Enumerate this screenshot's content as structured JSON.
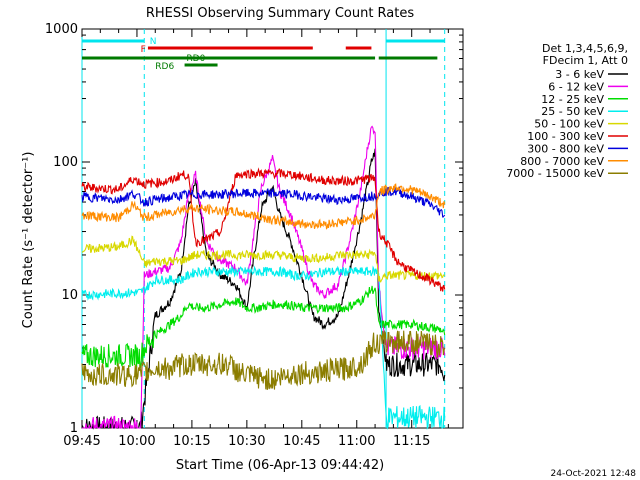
{
  "chart_data": {
    "type": "line",
    "title": "RHESSI Observing Summary Count Rates",
    "xlabel": "Start Time (06-Apr-13 09:44:42)",
    "ylabel": "Count Rate (s⁻¹ detector⁻¹)",
    "yscale": "log",
    "ylim": [
      1,
      1000
    ],
    "xlim_minutes": [
      0,
      104
    ],
    "x_tick_labels": [
      "09:45",
      "10:00",
      "10:15",
      "10:30",
      "10:45",
      "11:00",
      "11:15"
    ],
    "x_tick_minutes": [
      0,
      15,
      30,
      45,
      60,
      75,
      90
    ],
    "y_tick_labels": [
      "1",
      "10",
      "100",
      "1000"
    ],
    "y_tick_values": [
      1,
      10,
      100,
      1000
    ],
    "legend_header": [
      "Det 1,3,4,5,6,9,",
      "FDecim 1, Att 0"
    ],
    "timestamp": "24-Oct-2021 12:48",
    "flag_labels": {
      "night": "N",
      "flare": "F",
      "rd0": "RD0",
      "rd6": "RD6"
    },
    "colors": {
      "night": "#00e5ee",
      "flare": "#e00000",
      "rd": "#007a00"
    },
    "flag_bars": [
      {
        "flag": "night",
        "segments": [
          [
            0,
            17
          ],
          [
            83,
            99
          ]
        ],
        "level": 0
      },
      {
        "flag": "flare",
        "segments": [
          [
            18,
            63
          ],
          [
            72,
            79
          ]
        ],
        "level": 1
      },
      {
        "flag": "rd0",
        "segments": [
          [
            0,
            80
          ],
          [
            81,
            97
          ]
        ],
        "level": 2
      },
      {
        "flag": "rd6",
        "segments": [
          [
            28,
            37
          ]
        ],
        "level": 3
      }
    ],
    "night_edges_minutes": [
      0,
      17,
      83,
      99
    ],
    "series": [
      {
        "name": "3 - 6 keV",
        "color": "#000000",
        "x": [
          0,
          16,
          17,
          20,
          24,
          27,
          29,
          31,
          34,
          38,
          42,
          45,
          47,
          49,
          52,
          54,
          57,
          60,
          63,
          66,
          70,
          73,
          76,
          78,
          79,
          80,
          81,
          83,
          90,
          98,
          99
        ],
        "y": [
          1,
          1,
          1.6,
          7,
          9,
          15,
          45,
          70,
          20,
          14,
          12,
          8,
          20,
          45,
          65,
          40,
          25,
          14,
          7,
          6,
          7,
          15,
          35,
          70,
          100,
          120,
          8,
          3,
          3,
          3,
          2.5
        ]
      },
      {
        "name": "6 - 12 keV",
        "color": "#ee00ee",
        "x": [
          0,
          16,
          17,
          20,
          24,
          27,
          29,
          31,
          34,
          38,
          42,
          45,
          47,
          49,
          52,
          54,
          57,
          60,
          63,
          66,
          70,
          73,
          76,
          78,
          79,
          80,
          81,
          83,
          90,
          98,
          99
        ],
        "y": [
          1,
          1,
          14,
          15,
          16,
          25,
          55,
          80,
          25,
          18,
          16,
          12,
          30,
          65,
          105,
          60,
          40,
          22,
          12,
          10,
          12,
          25,
          60,
          130,
          180,
          175,
          12,
          4,
          4,
          4,
          3.5
        ]
      },
      {
        "name": "12 - 25 keV",
        "color": "#00dd00",
        "x": [
          0,
          16,
          17,
          20,
          24,
          27,
          29,
          31,
          34,
          38,
          42,
          45,
          48,
          52,
          56,
          60,
          64,
          68,
          72,
          76,
          79,
          80,
          81,
          83,
          90,
          98,
          99
        ],
        "y": [
          3.5,
          3.5,
          4,
          5,
          6,
          7,
          8.5,
          8,
          8,
          8.5,
          9,
          8,
          8,
          8.5,
          8.5,
          8,
          8,
          8,
          8,
          9,
          11,
          11,
          6,
          6,
          6,
          5.5,
          5
        ]
      },
      {
        "name": "25 - 50 keV",
        "color": "#00eeee",
        "x": [
          0,
          16,
          17,
          20,
          24,
          27,
          29,
          31,
          34,
          38,
          42,
          46,
          50,
          54,
          58,
          62,
          66,
          70,
          74,
          78,
          80,
          81,
          83,
          88,
          95,
          99
        ],
        "y": [
          10,
          10.5,
          11,
          13,
          13,
          13,
          14,
          15,
          15,
          15,
          15,
          15,
          15,
          15,
          14,
          14,
          15,
          15,
          15,
          15,
          15,
          15,
          1.2,
          1.2,
          1.2,
          1.2
        ]
      },
      {
        "name": "50 - 100 keV",
        "color": "#d8d800",
        "x": [
          0,
          10,
          14,
          17,
          20,
          24,
          27,
          29,
          31,
          34,
          38,
          42,
          46,
          50,
          54,
          58,
          62,
          66,
          70,
          74,
          78,
          80,
          81,
          83,
          88,
          95,
          99
        ],
        "y": [
          22,
          23,
          26,
          17,
          18,
          18,
          18,
          19,
          20,
          20,
          20,
          20,
          20,
          20,
          20,
          19,
          19,
          19,
          20,
          20,
          20,
          21,
          13,
          14,
          14,
          14,
          14
        ]
      },
      {
        "name": "100 - 300 keV",
        "color": "#e00000",
        "x": [
          0,
          10,
          14,
          17,
          20,
          24,
          27,
          29,
          31,
          34,
          38,
          42,
          46,
          50,
          54,
          58,
          62,
          66,
          70,
          74,
          78,
          80,
          81,
          83,
          86,
          90,
          95,
          99
        ],
        "y": [
          65,
          62,
          75,
          68,
          70,
          72,
          80,
          80,
          25,
          26,
          30,
          80,
          82,
          82,
          82,
          80,
          76,
          73,
          72,
          72,
          75,
          75,
          30,
          25,
          18,
          15,
          13,
          11
        ]
      },
      {
        "name": "300 - 800 keV",
        "color": "#0000dd",
        "x": [
          0,
          10,
          14,
          17,
          20,
          24,
          27,
          29,
          31,
          34,
          38,
          42,
          46,
          50,
          54,
          58,
          62,
          66,
          70,
          74,
          78,
          80,
          81,
          83,
          86,
          90,
          95,
          99
        ],
        "y": [
          55,
          52,
          58,
          50,
          52,
          54,
          56,
          57,
          57,
          57,
          57,
          58,
          58,
          58,
          58,
          57,
          55,
          53,
          52,
          53,
          55,
          56,
          58,
          60,
          60,
          55,
          48,
          40
        ]
      },
      {
        "name": "800 - 7000 keV",
        "color": "#ff8c00",
        "x": [
          0,
          10,
          14,
          17,
          20,
          24,
          27,
          29,
          31,
          34,
          38,
          42,
          46,
          50,
          54,
          58,
          62,
          66,
          70,
          74,
          78,
          80,
          81,
          83,
          86,
          90,
          95,
          99
        ],
        "y": [
          40,
          38,
          48,
          38,
          40,
          42,
          44,
          45,
          45,
          44,
          43,
          42,
          40,
          38,
          36,
          35,
          34,
          34,
          35,
          36,
          38,
          40,
          60,
          62,
          65,
          62,
          55,
          48
        ]
      },
      {
        "name": "7000 - 15000 keV",
        "color": "#8b7d00",
        "x": [
          0,
          16,
          17,
          20,
          24,
          28,
          32,
          36,
          40,
          44,
          48,
          52,
          56,
          60,
          64,
          68,
          72,
          76,
          79,
          80,
          81,
          83,
          88,
          95,
          99
        ],
        "y": [
          2.5,
          2.5,
          2.6,
          2.8,
          2.8,
          3,
          3,
          3,
          3,
          2.5,
          2.4,
          2.3,
          2.5,
          2.6,
          2.6,
          2.7,
          2.8,
          3,
          4,
          4.5,
          4.2,
          4.5,
          4.5,
          4.3,
          4
        ]
      }
    ]
  }
}
